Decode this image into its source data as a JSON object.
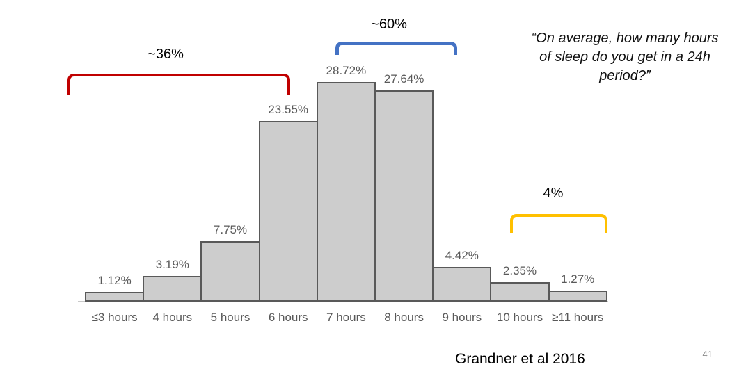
{
  "slide": {
    "quote": {
      "lines": [
        "“On average, how many hours",
        "of sleep do you get in a 24h",
        "period?”"
      ]
    },
    "citation": "Grandner et al 2016",
    "page_number": "41"
  },
  "chart_data": {
    "type": "bar",
    "title": "",
    "xlabel": "",
    "ylabel": "",
    "categories": [
      "≤3 hours",
      "4 hours",
      "5 hours",
      "6 hours",
      "7 hours",
      "8 hours",
      "9 hours",
      "10 hours",
      "≥11 hours"
    ],
    "values": [
      1.12,
      3.19,
      7.75,
      23.55,
      28.72,
      27.64,
      4.42,
      2.35,
      1.27
    ],
    "value_labels": [
      "1.12%",
      "3.19%",
      "7.75%",
      "23.55%",
      "28.72%",
      "27.64%",
      "4.42%",
      "2.35%",
      "1.27%"
    ],
    "ylim": [
      0,
      30
    ],
    "grid": false,
    "legend": "none",
    "colors": {
      "bar_fill": "#cdcdcd",
      "bar_border": "#595959",
      "data_label": "#595959",
      "axis_label": "#595959",
      "axis_line": "#c9c9c9"
    },
    "annotations": [
      {
        "label": "~36%",
        "color": "#c00000",
        "from": "≤3 hours",
        "to": "6 hours"
      },
      {
        "label": "~60%",
        "color": "#4472c4",
        "from": "7 hours",
        "to": "8 hours"
      },
      {
        "label": "4%",
        "color": "#ffc000",
        "from": "10 hours",
        "to": "≥11 hours"
      }
    ]
  }
}
